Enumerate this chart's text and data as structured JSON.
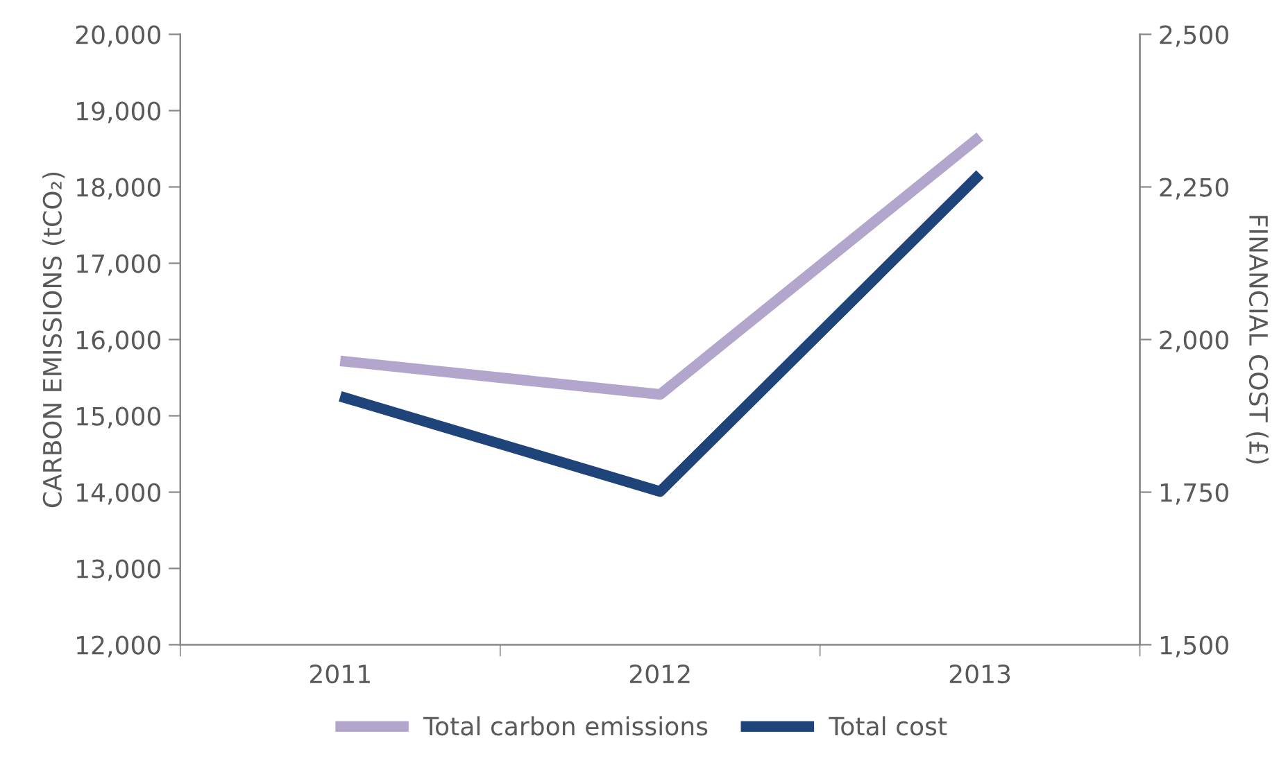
{
  "chart_data": {
    "type": "line",
    "categories": [
      "2011",
      "2012",
      "2013"
    ],
    "ylabel": "CARBON EMISSIONS (tCO₂)",
    "y2label": "FINANCIAL COST (£)",
    "series": [
      {
        "name": "Total carbon emissions",
        "color": "#b3a6cc",
        "values": [
          15720,
          15280,
          18660
        ]
      },
      {
        "name": "Total cost",
        "color": "#1f4479",
        "values": [
          1907,
          1751,
          2271
        ],
        "axis": "y2"
      }
    ],
    "ylim": [
      12000,
      20000
    ],
    "yticks": [
      {
        "value": 12000,
        "label": "12,000"
      },
      {
        "value": 13000,
        "label": "13,000"
      },
      {
        "value": 14000,
        "label": "14,000"
      },
      {
        "value": 15000,
        "label": "15,000"
      },
      {
        "value": 16000,
        "label": "16,000"
      },
      {
        "value": 17000,
        "label": "17,000"
      },
      {
        "value": 18000,
        "label": "18,000"
      },
      {
        "value": 19000,
        "label": "19,000"
      },
      {
        "value": 20000,
        "label": "20,000"
      }
    ],
    "y2lim": [
      1500,
      2500
    ],
    "y2ticks": [
      {
        "value": 1500,
        "label": "1,500"
      },
      {
        "value": 1750,
        "label": "1,750"
      },
      {
        "value": 2000,
        "label": "2,000"
      },
      {
        "value": 2250,
        "label": "2,250"
      },
      {
        "value": 2500,
        "label": "2,500"
      }
    ],
    "legend": "bottom",
    "grid": false,
    "marker": "none",
    "line_style": "solid"
  }
}
